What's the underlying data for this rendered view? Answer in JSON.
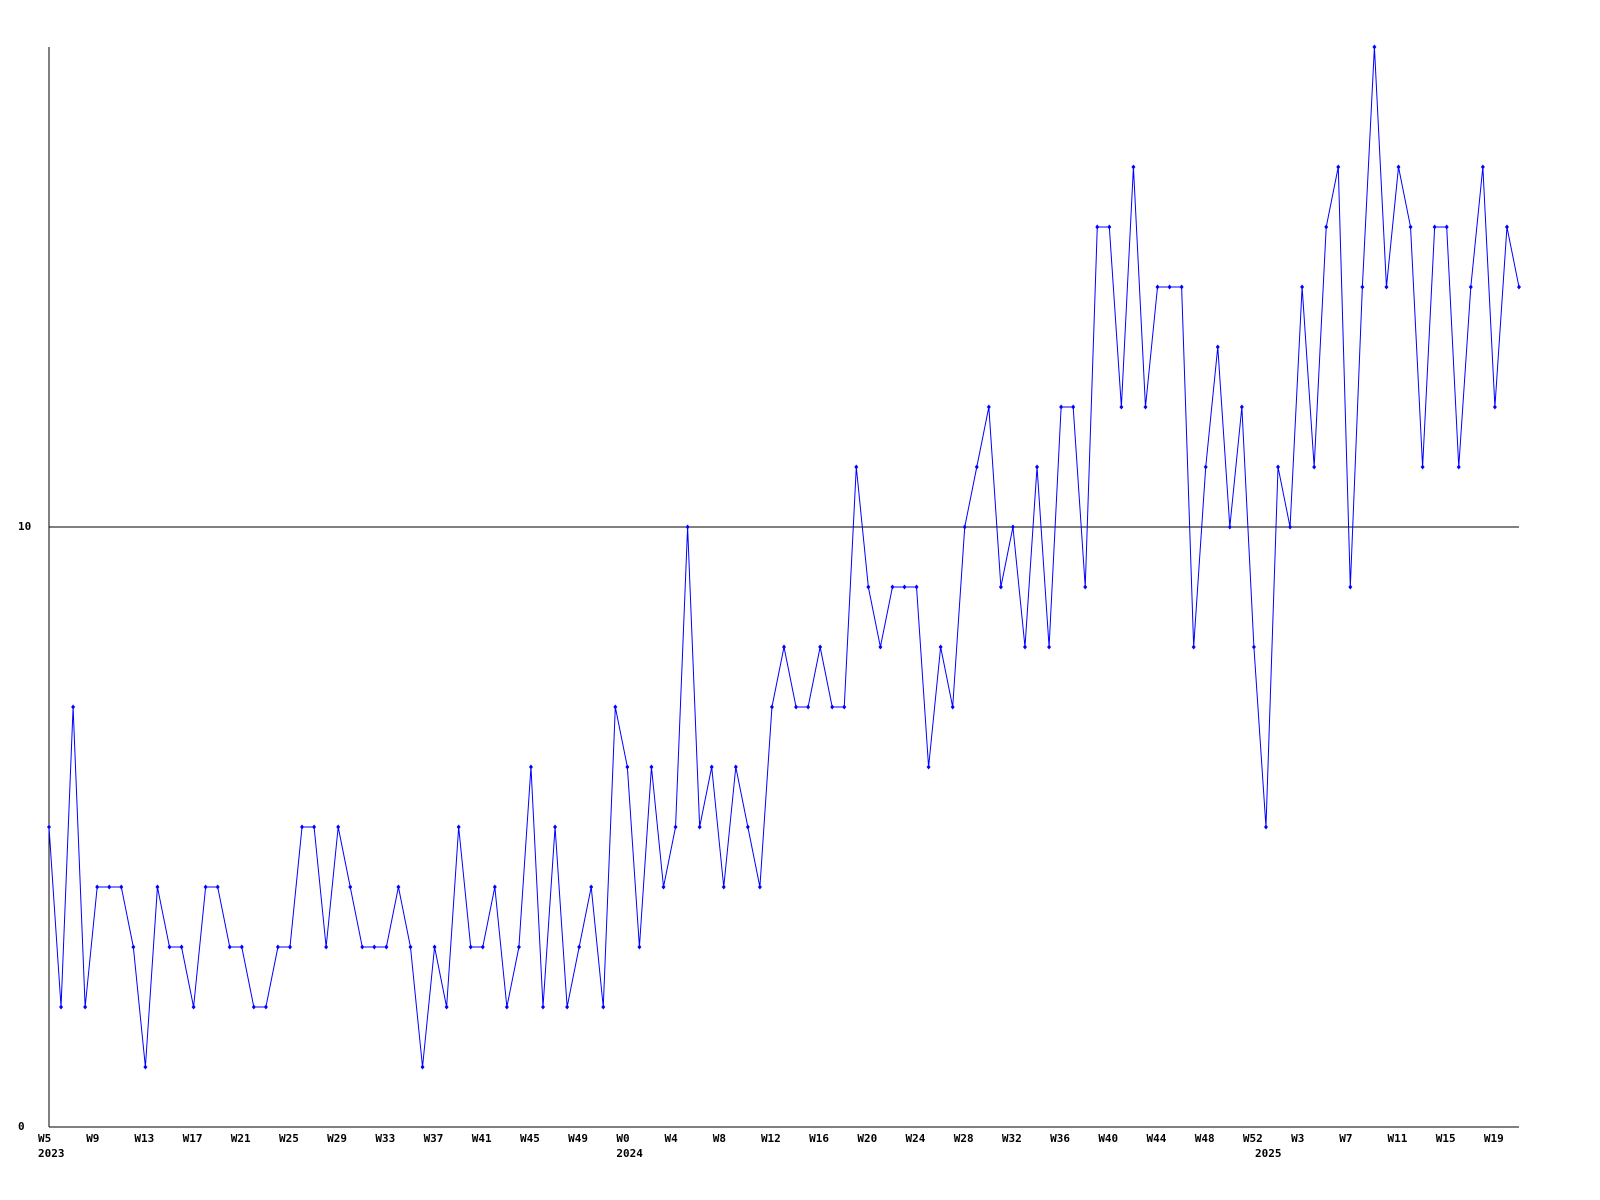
{
  "chart_data": {
    "type": "line",
    "categories": [
      "W5",
      null,
      null,
      null,
      "W9",
      null,
      null,
      null,
      "W13",
      null,
      null,
      null,
      "W17",
      null,
      null,
      null,
      "W21",
      null,
      null,
      null,
      "W25",
      null,
      null,
      null,
      "W29",
      null,
      null,
      null,
      "W33",
      null,
      null,
      null,
      "W37",
      null,
      null,
      null,
      "W41",
      null,
      null,
      null,
      "W45",
      null,
      null,
      null,
      "W49",
      null,
      null,
      null,
      "W0",
      null,
      null,
      null,
      "W4",
      null,
      null,
      null,
      "W8",
      null,
      null,
      null,
      "W12",
      null,
      null,
      null,
      "W16",
      null,
      null,
      null,
      "W20",
      null,
      null,
      null,
      "W24",
      null,
      null,
      null,
      "W28",
      null,
      null,
      null,
      "W32",
      null,
      null,
      null,
      "W36",
      null,
      null,
      null,
      "W40",
      null,
      null,
      null,
      "W44",
      null,
      null,
      null,
      "W48",
      null,
      null,
      null,
      "W52",
      null,
      null,
      null,
      "W3",
      null,
      null,
      null,
      "W7",
      null,
      null,
      null,
      "W11",
      null,
      null,
      null,
      "W15",
      null,
      null,
      null,
      "W19",
      null,
      null
    ],
    "years": [
      "2023",
      null,
      null,
      null,
      null,
      null,
      null,
      null,
      null,
      null,
      null,
      null,
      null,
      null,
      null,
      null,
      null,
      null,
      null,
      null,
      null,
      null,
      null,
      null,
      null,
      null,
      null,
      null,
      null,
      null,
      null,
      null,
      null,
      null,
      null,
      null,
      null,
      null,
      null,
      null,
      null,
      null,
      null,
      null,
      null,
      null,
      null,
      null,
      "2024",
      null,
      null,
      null,
      null,
      null,
      null,
      null,
      null,
      null,
      null,
      null,
      null,
      null,
      null,
      null,
      null,
      null,
      null,
      null,
      null,
      null,
      null,
      null,
      null,
      null,
      null,
      null,
      null,
      null,
      null,
      null,
      null,
      null,
      null,
      null,
      null,
      null,
      null,
      null,
      null,
      null,
      null,
      null,
      null,
      null,
      null,
      null,
      null,
      null,
      null,
      null,
      null,
      "2025",
      null,
      null,
      null,
      null,
      null,
      null,
      null,
      null,
      null,
      null,
      null,
      null,
      null,
      null,
      null,
      null,
      null,
      null,
      null,
      null,
      null
    ],
    "series": [
      {
        "color": "#0000ff",
        "values": [
          5,
          2,
          7,
          2,
          4,
          4,
          4,
          3,
          1,
          4,
          3,
          3,
          2,
          4,
          4,
          3,
          3,
          2,
          2,
          3,
          3,
          5,
          5,
          3,
          5,
          4,
          3,
          3,
          3,
          4,
          3,
          1,
          3,
          2,
          5,
          3,
          3,
          4,
          2,
          3,
          6,
          2,
          5,
          2,
          3,
          4,
          2,
          7,
          6,
          3,
          6,
          4,
          5,
          10,
          5,
          6,
          4,
          6,
          5,
          4,
          7,
          8,
          7,
          7,
          8,
          7,
          7,
          11,
          9,
          8,
          9,
          9,
          9,
          6,
          8,
          7,
          10,
          11,
          12,
          9,
          10,
          8,
          11,
          8,
          12,
          12,
          9,
          15,
          15,
          12,
          16,
          12,
          14,
          14,
          14,
          8,
          11,
          13,
          10,
          12,
          8,
          5,
          11,
          10,
          14,
          11,
          15,
          16,
          9,
          14,
          18,
          14,
          16,
          15,
          11,
          15,
          15,
          11,
          14,
          16,
          12,
          15,
          14
        ]
      }
    ],
    "ylim": [
      0,
      18
    ],
    "yticks": [
      0,
      10
    ],
    "grid": true
  }
}
